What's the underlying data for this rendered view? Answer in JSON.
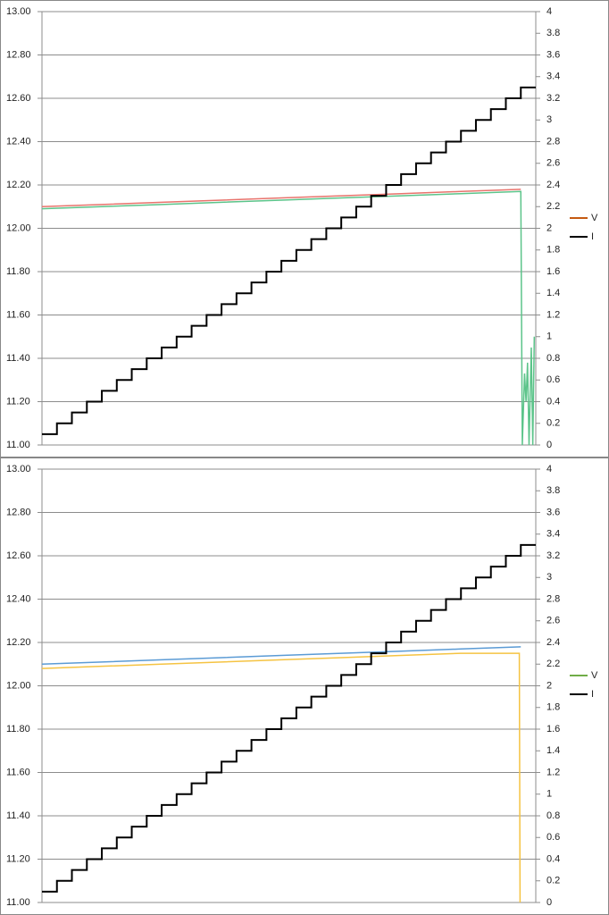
{
  "chart_data": [
    {
      "type": "line",
      "xlim": [
        0,
        33
      ],
      "ylim": [
        11,
        13
      ],
      "y2lim": [
        0,
        4
      ],
      "grid": true,
      "legend_position": "right",
      "yticks": [
        {
          "value": 11,
          "label": "11.00"
        },
        {
          "value": 11.2,
          "label": "11.20"
        },
        {
          "value": 11.4,
          "label": "11.40"
        },
        {
          "value": 11.6,
          "label": "11.60"
        },
        {
          "value": 11.8,
          "label": "11.80"
        },
        {
          "value": 12,
          "label": "12.00"
        },
        {
          "value": 12.2,
          "label": "12.20"
        },
        {
          "value": 12.4,
          "label": "12.40"
        },
        {
          "value": 12.6,
          "label": "12.60"
        },
        {
          "value": 12.8,
          "label": "12.80"
        },
        {
          "value": 13,
          "label": "13.00"
        }
      ],
      "y2ticks": [
        0,
        0.2,
        0.4,
        0.6,
        0.8,
        1,
        1.2,
        1.4,
        1.6,
        1.8,
        2,
        2.2,
        2.4,
        2.6,
        2.8,
        3,
        3.2,
        3.4,
        3.6,
        3.8,
        4
      ],
      "legend": [
        {
          "name": "V",
          "color": "#c55a11"
        },
        {
          "name": "I",
          "color": "#000000"
        }
      ],
      "series": [
        {
          "color": "#e8736c",
          "x": [
            0,
            4,
            8,
            12,
            16,
            20,
            24,
            28,
            32
          ],
          "values": [
            12.1,
            12.11,
            12.12,
            12.13,
            12.14,
            12.15,
            12.16,
            12.17,
            12.18
          ]
        },
        {
          "color": "#5cc48a",
          "x": [
            0,
            4,
            8,
            12,
            16,
            20,
            24,
            28,
            32,
            32.1,
            32.25,
            32.35,
            32.45,
            32.55,
            32.7,
            32.8,
            32.9
          ],
          "values": [
            12.09,
            12.1,
            12.11,
            12.12,
            12.13,
            12.14,
            12.15,
            12.16,
            12.17,
            11,
            11.33,
            11.2,
            11.38,
            11,
            11.45,
            11,
            11.5
          ]
        },
        {
          "color": "#000000",
          "axis": "y2",
          "step": true,
          "x": [
            0,
            1,
            2,
            3,
            4,
            5,
            6,
            7,
            8,
            9,
            10,
            11,
            12,
            13,
            14,
            15,
            16,
            17,
            18,
            19,
            20,
            21,
            22,
            23,
            24,
            25,
            26,
            27,
            28,
            29,
            30,
            31,
            32,
            33
          ],
          "values": [
            0.1,
            0.2,
            0.3,
            0.4,
            0.5,
            0.6,
            0.7,
            0.8,
            0.9,
            1.0,
            1.1,
            1.2,
            1.3,
            1.4,
            1.5,
            1.6,
            1.7,
            1.8,
            1.9,
            2.0,
            2.1,
            2.2,
            2.3,
            2.4,
            2.5,
            2.6,
            2.7,
            2.8,
            2.9,
            3.0,
            3.1,
            3.2,
            3.3,
            3.3
          ]
        }
      ]
    },
    {
      "type": "line",
      "xlim": [
        0,
        33
      ],
      "ylim": [
        11,
        13
      ],
      "y2lim": [
        0,
        4
      ],
      "grid": true,
      "legend_position": "right",
      "yticks": [
        {
          "value": 11,
          "label": "11.00"
        },
        {
          "value": 11.2,
          "label": "11.20"
        },
        {
          "value": 11.4,
          "label": "11.40"
        },
        {
          "value": 11.6,
          "label": "11.60"
        },
        {
          "value": 11.8,
          "label": "11.80"
        },
        {
          "value": 12,
          "label": "12.00"
        },
        {
          "value": 12.2,
          "label": "12.20"
        },
        {
          "value": 12.4,
          "label": "12.40"
        },
        {
          "value": 12.6,
          "label": "12.60"
        },
        {
          "value": 12.8,
          "label": "12.80"
        },
        {
          "value": 13,
          "label": "13.00"
        }
      ],
      "y2ticks": [
        0,
        0.2,
        0.4,
        0.6,
        0.8,
        1,
        1.2,
        1.4,
        1.6,
        1.8,
        2,
        2.2,
        2.4,
        2.6,
        2.8,
        3,
        3.2,
        3.4,
        3.6,
        3.8,
        4
      ],
      "legend": [
        {
          "name": "V",
          "color": "#70ad47"
        },
        {
          "name": "I",
          "color": "#000000"
        }
      ],
      "series": [
        {
          "color": "#5b9bd5",
          "x": [
            0,
            4,
            8,
            12,
            16,
            20,
            24,
            28,
            32
          ],
          "values": [
            12.1,
            12.11,
            12.12,
            12.13,
            12.14,
            12.15,
            12.16,
            12.17,
            12.18
          ]
        },
        {
          "color": "#f5c342",
          "x": [
            0,
            4,
            8,
            12,
            16,
            20,
            24,
            28,
            31.9,
            31.95
          ],
          "values": [
            12.08,
            12.09,
            12.1,
            12.11,
            12.12,
            12.13,
            12.14,
            12.15,
            12.15,
            11
          ]
        },
        {
          "color": "#000000",
          "axis": "y2",
          "step": true,
          "x": [
            0,
            1,
            2,
            3,
            4,
            5,
            6,
            7,
            8,
            9,
            10,
            11,
            12,
            13,
            14,
            15,
            16,
            17,
            18,
            19,
            20,
            21,
            22,
            23,
            24,
            25,
            26,
            27,
            28,
            29,
            30,
            31,
            32,
            33
          ],
          "values": [
            0.1,
            0.2,
            0.3,
            0.4,
            0.5,
            0.6,
            0.7,
            0.8,
            0.9,
            1.0,
            1.1,
            1.2,
            1.3,
            1.4,
            1.5,
            1.6,
            1.7,
            1.8,
            1.9,
            2.0,
            2.1,
            2.2,
            2.3,
            2.4,
            2.5,
            2.6,
            2.7,
            2.8,
            2.9,
            3.0,
            3.1,
            3.2,
            3.3,
            3.3
          ]
        }
      ]
    }
  ]
}
